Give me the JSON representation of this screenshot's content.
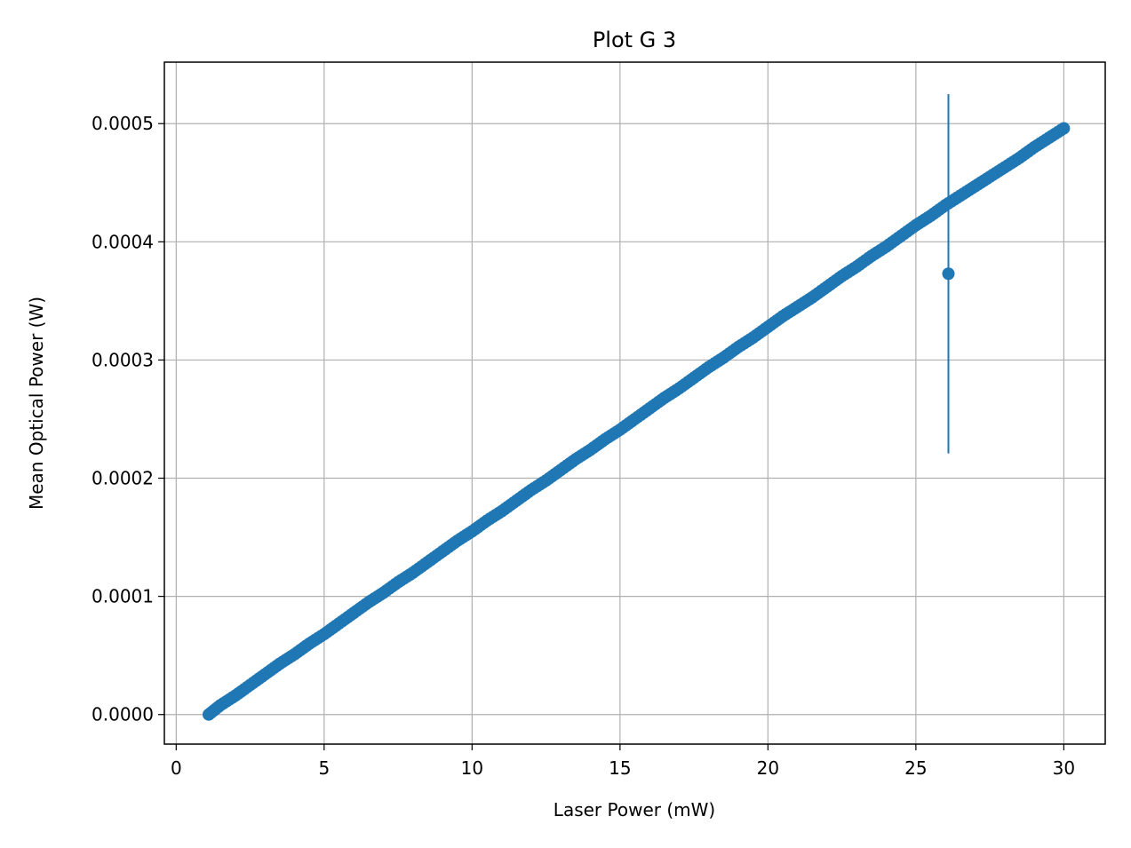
{
  "chart_data": {
    "type": "scatter",
    "title": "Plot G 3",
    "xlabel": "Laser Power (mW)",
    "ylabel": "Mean Optical Power (W)",
    "xlim": [
      -0.4,
      31.4
    ],
    "ylim": [
      -2.5e-05,
      0.000552
    ],
    "xticks": [
      0,
      5,
      10,
      15,
      20,
      25,
      30
    ],
    "xtick_labels": [
      "0",
      "5",
      "10",
      "15",
      "20",
      "25",
      "30"
    ],
    "yticks": [
      0,
      0.0001,
      0.0002,
      0.0003,
      0.0004,
      0.0005
    ],
    "ytick_labels": [
      "0.0000",
      "0.0001",
      "0.0002",
      "0.0003",
      "0.0004",
      "0.0005"
    ],
    "grid": true,
    "color": "#1f77b4",
    "series": [
      {
        "x": [
          1.1,
          1.5,
          2.0,
          2.5,
          3.0,
          3.5,
          4.0,
          4.5,
          5.0,
          5.5,
          6.0,
          6.5,
          7.0,
          7.5,
          8.0,
          8.5,
          9.0,
          9.5,
          10.0,
          10.5,
          11.0,
          11.5,
          12.0,
          12.5,
          13.0,
          13.5,
          14.0,
          14.5,
          15.0,
          15.5,
          16.0,
          16.5,
          17.0,
          17.5,
          18.0,
          18.5,
          19.0,
          19.5,
          20.0,
          20.5,
          21.0,
          21.5,
          22.0,
          22.5,
          23.0,
          23.5,
          24.0,
          24.5,
          25.0,
          25.5,
          26.0,
          26.5,
          27.0,
          27.5,
          28.0,
          28.5,
          29.0,
          29.5,
          30.0
        ],
        "y": [
          0.0,
          8e-06,
          1.6e-05,
          2.5e-05,
          3.4e-05,
          4.3e-05,
          5.1e-05,
          6e-05,
          6.8e-05,
          7.7e-05,
          8.6e-05,
          9.5e-05,
          0.000103,
          0.000112,
          0.00012,
          0.000129,
          0.000138,
          0.000147,
          0.000155,
          0.000164,
          0.000172,
          0.000181,
          0.00019,
          0.000198,
          0.000207,
          0.000216,
          0.000224,
          0.000233,
          0.000241,
          0.00025,
          0.000259,
          0.000268,
          0.000276,
          0.000285,
          0.000294,
          0.000302,
          0.000311,
          0.000319,
          0.000328,
          0.000337,
          0.000345,
          0.000353,
          0.000362,
          0.000371,
          0.000379,
          0.000388,
          0.000396,
          0.000405,
          0.000414,
          0.000422,
          0.000431,
          0.000439,
          0.000447,
          0.000455,
          0.000463,
          0.000471,
          0.00048,
          0.000488,
          0.000496
        ]
      }
    ],
    "error_point": {
      "x": 26.1,
      "y": 0.000373,
      "yerr": 0.000152
    }
  }
}
